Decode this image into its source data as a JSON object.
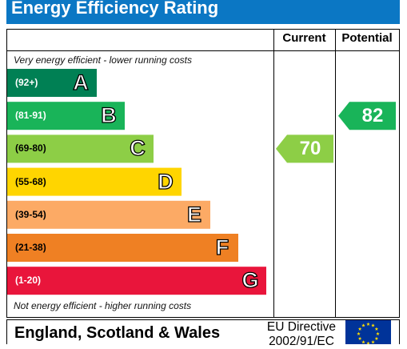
{
  "header": {
    "title": "Energy Efficiency Rating"
  },
  "columns": {
    "current": "Current",
    "potential": "Potential"
  },
  "captions": {
    "top": "Very energy efficient - lower running costs",
    "bottom": "Not energy efficient - higher running costs"
  },
  "footer": {
    "region": "England, Scotland & Wales",
    "directive_line1": "EU Directive",
    "directive_line2": "2002/91/EC",
    "flag_icon": "eu-flag-icon"
  },
  "chart_data": {
    "type": "bar",
    "bands": [
      {
        "letter": "A",
        "range": "(92+)",
        "color": "#008054"
      },
      {
        "letter": "B",
        "range": "(81-91)",
        "color": "#19b459"
      },
      {
        "letter": "C",
        "range": "(69-80)",
        "color": "#8dce46"
      },
      {
        "letter": "D",
        "range": "(55-68)",
        "color": "#ffd500"
      },
      {
        "letter": "E",
        "range": "(39-54)",
        "color": "#fcaa65"
      },
      {
        "letter": "F",
        "range": "(21-38)",
        "color": "#ef8023"
      },
      {
        "letter": "G",
        "range": "(1-20)",
        "color": "#e9153b"
      }
    ],
    "current": {
      "value": 70,
      "band": "C",
      "color": "#8dce46"
    },
    "potential": {
      "value": 82,
      "band": "B",
      "color": "#19b459"
    }
  }
}
